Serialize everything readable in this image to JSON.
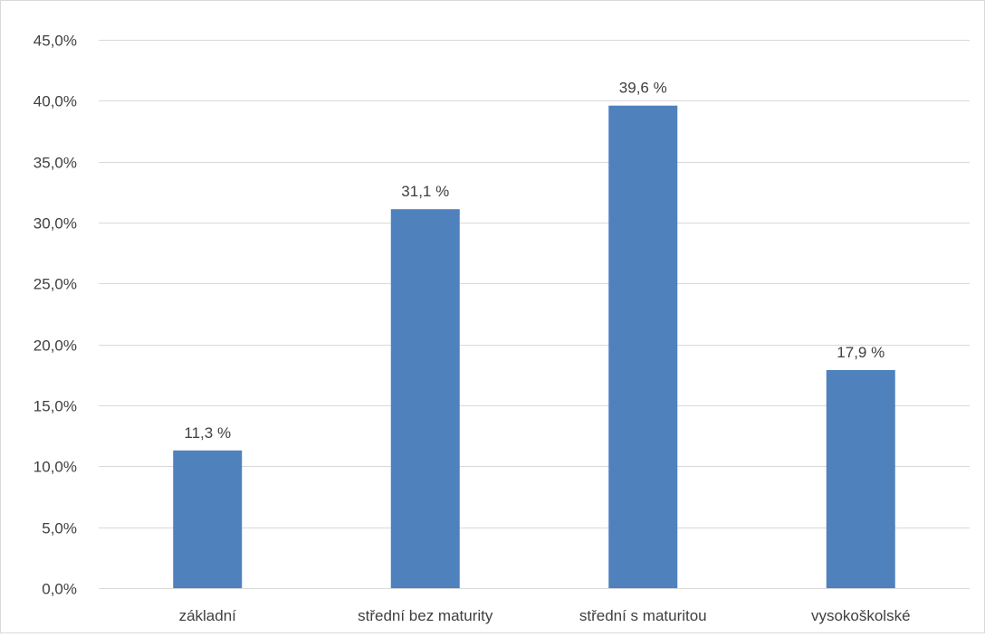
{
  "chart_data": {
    "type": "bar",
    "title": "",
    "xlabel": "",
    "ylabel": "",
    "categories": [
      "základní",
      "střední bez maturity",
      "střední s maturitou",
      "vysokoškolské"
    ],
    "values": [
      11.3,
      31.1,
      39.6,
      17.9
    ],
    "data_labels": [
      "11,3 %",
      "31,1 %",
      "39,6 %",
      "17,9 %"
    ],
    "ylim": [
      0,
      45
    ],
    "y_ticks": [
      0,
      5,
      10,
      15,
      20,
      25,
      30,
      35,
      40,
      45
    ],
    "y_tick_labels": [
      "0,0%",
      "5,0%",
      "10,0%",
      "15,0%",
      "20,0%",
      "25,0%",
      "30,0%",
      "35,0%",
      "40,0%",
      "45,0%"
    ],
    "grid": true,
    "legend": "none",
    "bar_color": "#4f81bd",
    "grid_color": "#d9d9d9",
    "text_color": "#404040"
  }
}
